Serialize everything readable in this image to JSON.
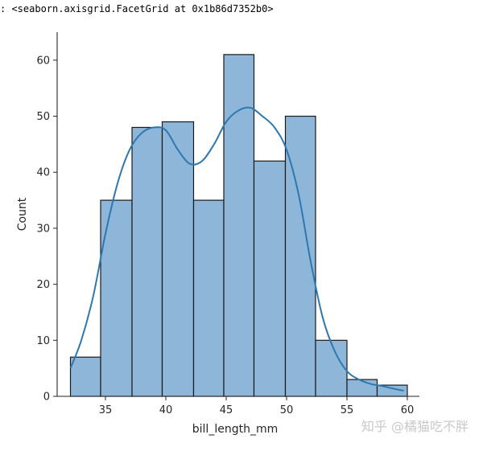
{
  "output_repr": ": <seaborn.axisgrid.FacetGrid at 0x1b86d7352b0>",
  "watermark": "知乎 @橘猫吃不胖",
  "colors": {
    "bar_fill": "#8DB6D9",
    "bar_edge": "#1a1a1a",
    "kde_line": "#2E78B0",
    "axis": "#262626"
  },
  "chart_data": {
    "type": "bar",
    "title": "",
    "xlabel": "bill_length_mm",
    "ylabel": "Count",
    "xlim": [
      31,
      61
    ],
    "ylim": [
      0,
      65
    ],
    "xticks": [
      35,
      40,
      45,
      50,
      55,
      60
    ],
    "yticks": [
      0,
      10,
      20,
      30,
      40,
      50,
      60
    ],
    "bins": [
      {
        "x0": 32.1,
        "x1": 34.6,
        "count": 7
      },
      {
        "x0": 34.6,
        "x1": 37.2,
        "count": 35
      },
      {
        "x0": 37.2,
        "x1": 39.7,
        "count": 48
      },
      {
        "x0": 39.7,
        "x1": 42.3,
        "count": 49
      },
      {
        "x0": 42.3,
        "x1": 44.8,
        "count": 35
      },
      {
        "x0": 44.8,
        "x1": 47.3,
        "count": 61
      },
      {
        "x0": 47.3,
        "x1": 49.9,
        "count": 42
      },
      {
        "x0": 49.9,
        "x1": 52.4,
        "count": 50
      },
      {
        "x0": 52.4,
        "x1": 55.0,
        "count": 10
      },
      {
        "x0": 55.0,
        "x1": 57.5,
        "count": 3
      },
      {
        "x0": 57.5,
        "x1": 60.0,
        "count": 2
      }
    ],
    "kde": [
      [
        32.1,
        5
      ],
      [
        33.0,
        10
      ],
      [
        34.0,
        18
      ],
      [
        35.0,
        29
      ],
      [
        36.0,
        38
      ],
      [
        37.0,
        44
      ],
      [
        38.0,
        47
      ],
      [
        39.0,
        48
      ],
      [
        40.0,
        47.5
      ],
      [
        41.0,
        44
      ],
      [
        42.0,
        41.5
      ],
      [
        43.0,
        42
      ],
      [
        44.0,
        45
      ],
      [
        45.0,
        49
      ],
      [
        46.0,
        51
      ],
      [
        47.0,
        51.5
      ],
      [
        48.0,
        50
      ],
      [
        49.0,
        48
      ],
      [
        50.0,
        44
      ],
      [
        51.0,
        36
      ],
      [
        52.0,
        24
      ],
      [
        53.0,
        14
      ],
      [
        54.0,
        8
      ],
      [
        55.0,
        4.5
      ],
      [
        56.0,
        3
      ],
      [
        57.0,
        2.2
      ],
      [
        58.0,
        1.8
      ],
      [
        59.0,
        1.3
      ],
      [
        59.7,
        1
      ]
    ],
    "grid": false,
    "legend": "none"
  }
}
